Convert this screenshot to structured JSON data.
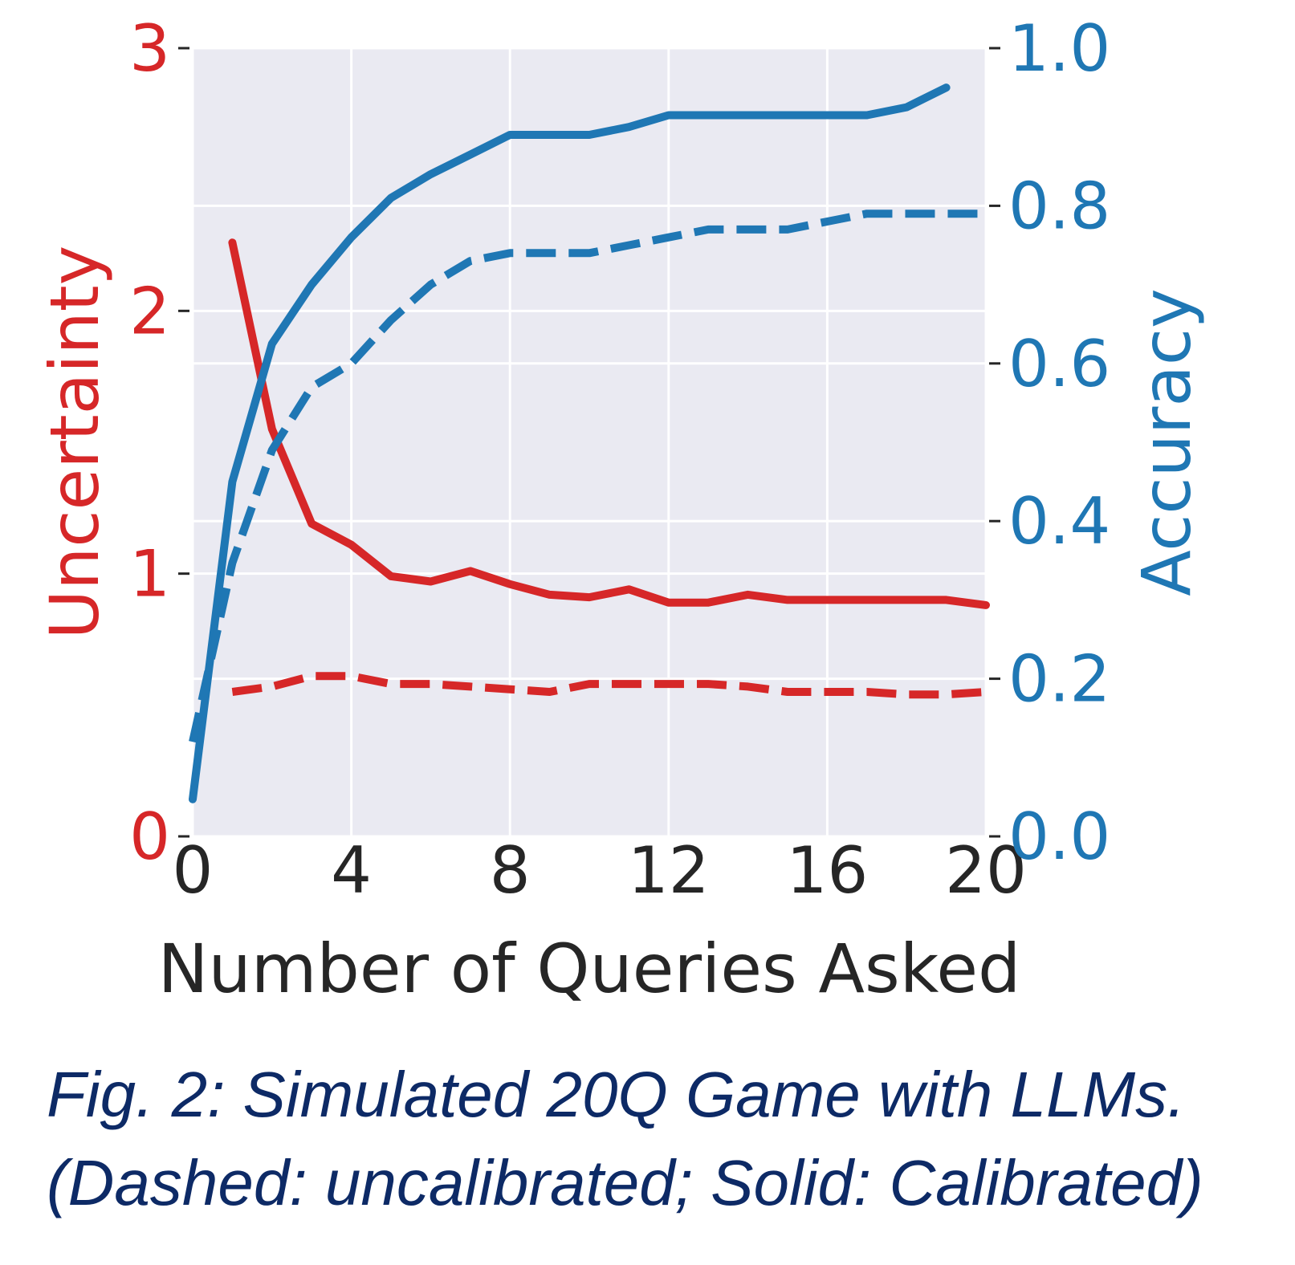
{
  "chart_data": {
    "type": "line",
    "xlabel": "Number of Queries Asked",
    "ylabel_left": "Uncertainty",
    "ylabel_right": "Accuracy",
    "xlim": [
      0,
      20
    ],
    "ylim_left": [
      0,
      3
    ],
    "ylim_right": [
      0.0,
      1.0
    ],
    "x_ticks": [
      "0",
      "4",
      "8",
      "12",
      "16",
      "20"
    ],
    "y_ticks_left": [
      "0",
      "1",
      "2",
      "3"
    ],
    "y_ticks_right": [
      "0.0",
      "0.2",
      "0.4",
      "0.6",
      "0.8",
      "1.0"
    ],
    "grid": true,
    "colors": {
      "uncertainty": "#d62728",
      "accuracy": "#1f77b4",
      "background": "#eaeaf2",
      "caption": "#0d2a66"
    },
    "series": [
      {
        "axis": "left",
        "style": "solid",
        "color": "#d62728",
        "x": [
          1,
          2,
          3,
          4,
          5,
          6,
          7,
          8,
          9,
          10,
          11,
          12,
          13,
          14,
          15,
          16,
          17,
          18,
          19,
          20
        ],
        "y": [
          2.26,
          1.55,
          1.19,
          1.11,
          0.99,
          0.97,
          1.01,
          0.96,
          0.92,
          0.91,
          0.94,
          0.89,
          0.89,
          0.92,
          0.9,
          0.9,
          0.9,
          0.9,
          0.9,
          0.88
        ]
      },
      {
        "axis": "left",
        "style": "dashed",
        "color": "#d62728",
        "x": [
          1,
          2,
          3,
          4,
          5,
          6,
          7,
          8,
          9,
          10,
          11,
          12,
          13,
          14,
          15,
          16,
          17,
          18,
          19,
          20
        ],
        "y": [
          0.55,
          0.57,
          0.61,
          0.61,
          0.58,
          0.58,
          0.57,
          0.56,
          0.55,
          0.58,
          0.58,
          0.58,
          0.58,
          0.57,
          0.55,
          0.55,
          0.55,
          0.54,
          0.54,
          0.55
        ]
      },
      {
        "axis": "right",
        "style": "solid",
        "color": "#1f77b4",
        "x": [
          0,
          1,
          2,
          3,
          4,
          5,
          6,
          7,
          8,
          9,
          10,
          11,
          12,
          13,
          14,
          15,
          16,
          17,
          18,
          19
        ],
        "y": [
          0.047,
          0.45,
          0.625,
          0.7,
          0.76,
          0.81,
          0.84,
          0.865,
          0.89,
          0.89,
          0.89,
          0.9,
          0.915,
          0.915,
          0.915,
          0.915,
          0.915,
          0.915,
          0.925,
          0.95
        ]
      },
      {
        "axis": "right",
        "style": "dashed",
        "color": "#1f77b4",
        "x": [
          0,
          1,
          2,
          3,
          4,
          5,
          6,
          7,
          8,
          9,
          10,
          11,
          12,
          13,
          14,
          15,
          16,
          17,
          18,
          19,
          20
        ],
        "y": [
          0.12,
          0.347,
          0.49,
          0.57,
          0.6,
          0.655,
          0.7,
          0.73,
          0.74,
          0.74,
          0.74,
          0.75,
          0.76,
          0.77,
          0.77,
          0.77,
          0.78,
          0.79,
          0.79,
          0.79,
          0.79
        ]
      }
    ]
  },
  "caption": {
    "line1": "Fig. 2: Simulated 20Q Game with LLMs.",
    "line2": "(Dashed: uncalibrated; Solid: Calibrated)"
  }
}
